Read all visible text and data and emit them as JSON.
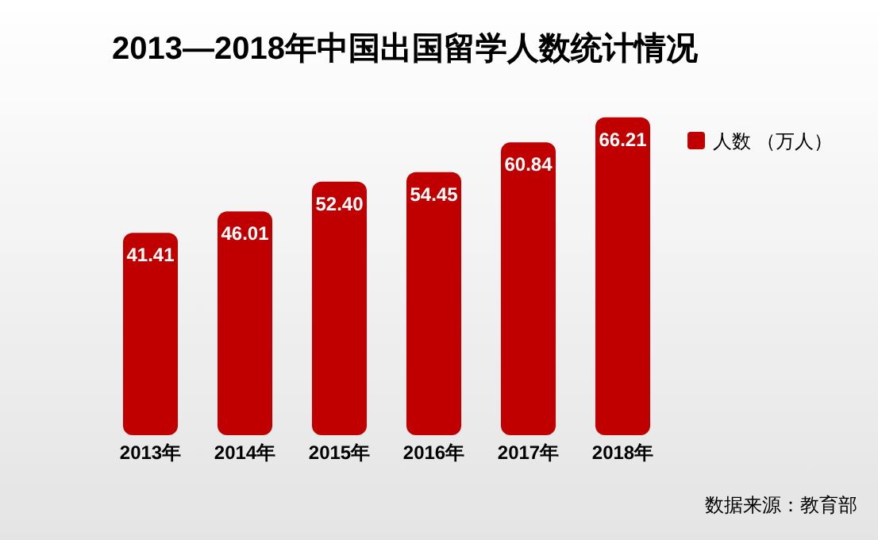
{
  "chart_data": {
    "type": "bar",
    "title": "2013—2018年中国出国留学人数统计情况",
    "categories": [
      "2013年",
      "2014年",
      "2015年",
      "2016年",
      "2017年",
      "2018年"
    ],
    "series": [
      {
        "name": "人数 （万人）",
        "color": "#c00000",
        "values": [
          41.41,
          46.01,
          52.4,
          54.45,
          60.84,
          66.21
        ],
        "value_labels": [
          "41.41",
          "46.01",
          "52.40",
          "54.45",
          "60.84",
          "66.21"
        ]
      }
    ],
    "legend": "top right",
    "tick_labels": "x",
    "annotations": [
      "数据来源：教育部"
    ]
  }
}
